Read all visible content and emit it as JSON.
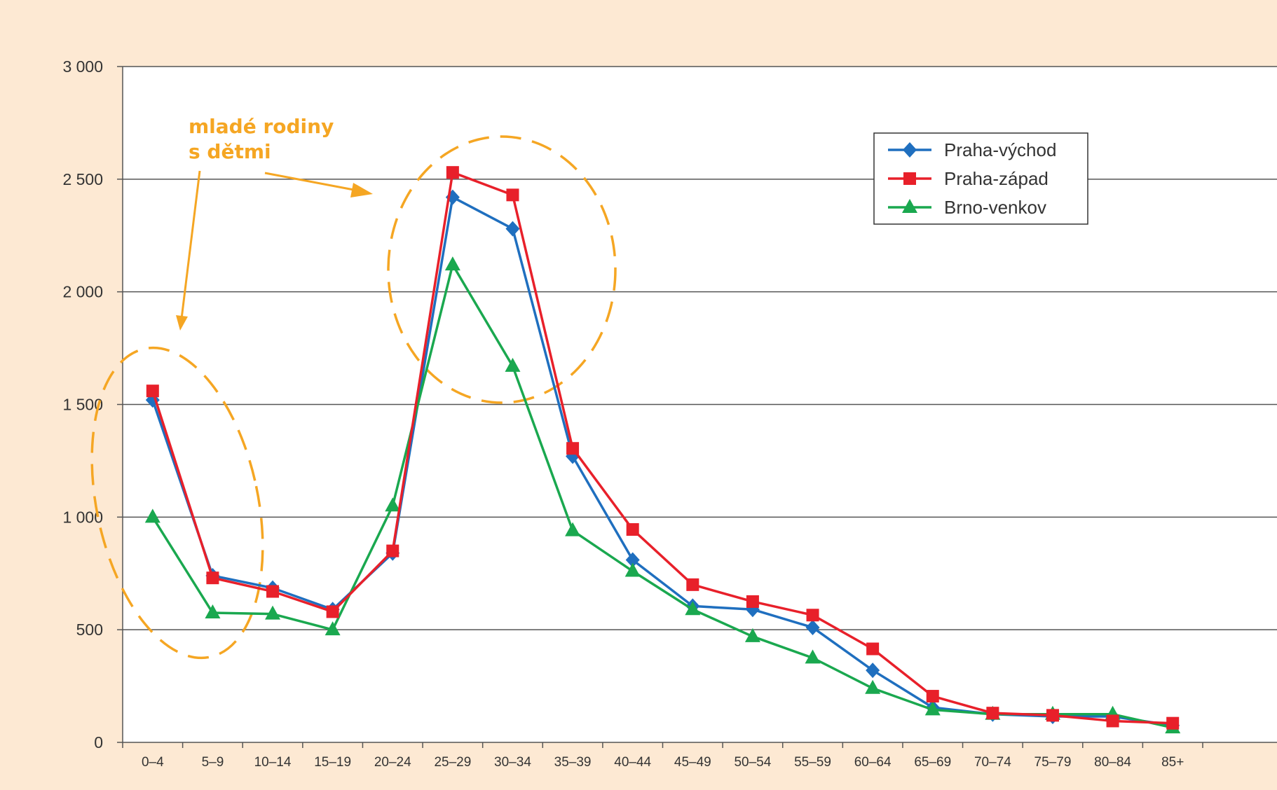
{
  "chart_data": {
    "type": "line",
    "categories": [
      "0–4",
      "5–9",
      "10–14",
      "15–19",
      "20–24",
      "25–29",
      "30–34",
      "35–39",
      "40–44",
      "45–49",
      "50–54",
      "55–59",
      "60–64",
      "65–69",
      "70–74",
      "75–79",
      "80–84",
      "85+"
    ],
    "y_ticks": [
      "0",
      "500",
      "1 000",
      "1 500",
      "2 000",
      "2 500",
      "3 000"
    ],
    "ylim": [
      0,
      3000
    ],
    "grid": true,
    "legend_position": "top-right",
    "series": [
      {
        "name": "Praha-východ",
        "color": "#1f6fbf",
        "marker": "diamond",
        "values": [
          1520,
          740,
          685,
          590,
          840,
          2420,
          2280,
          1270,
          810,
          605,
          590,
          510,
          320,
          155,
          125,
          115,
          115,
          75
        ]
      },
      {
        "name": "Praha-západ",
        "color": "#e8202a",
        "marker": "square",
        "values": [
          1560,
          730,
          670,
          580,
          850,
          2530,
          2430,
          1305,
          945,
          700,
          625,
          565,
          415,
          205,
          130,
          120,
          95,
          85
        ]
      },
      {
        "name": "Brno-venkov",
        "color": "#1aa84f",
        "marker": "triangle",
        "values": [
          1000,
          575,
          570,
          500,
          1050,
          2120,
          1670,
          940,
          760,
          590,
          470,
          375,
          240,
          145,
          125,
          125,
          125,
          65
        ]
      }
    ],
    "annotation": {
      "line1": "mladé rodiny",
      "line2": "s dětmi",
      "color": "#f5a623"
    }
  }
}
